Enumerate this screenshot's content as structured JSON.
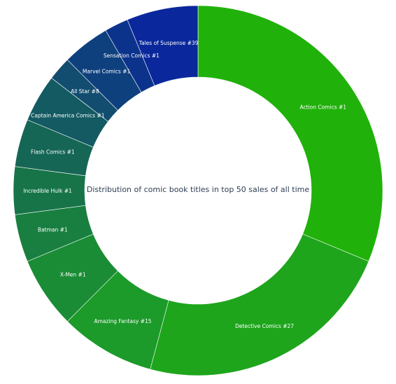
{
  "chart_data": {
    "type": "pie",
    "title": "Distribution of comic book titles in top 50 sales of all time",
    "categories": [
      "Action Comics #1",
      "Detective Comics #27",
      "Amazing Fantasy #15",
      "X-Men #1",
      "Batman #1",
      "Incredible Hulk #1",
      "Flash Comics #1",
      "Captain America Comics #1",
      "All Star #8",
      "Marvel Comics #1",
      "Sensation Comics #1",
      "Tales of Suspense #39"
    ],
    "values": [
      15,
      11,
      4,
      3,
      2,
      2,
      2,
      2,
      1,
      2,
      1,
      3
    ],
    "colors": [
      "#21b10b",
      "#1ea51c",
      "#1c9a2a",
      "#1a8c35",
      "#197f40",
      "#177449",
      "#166655",
      "#135a62",
      "#124d70",
      "#0f407e",
      "#0c338c",
      "#0a289b"
    ],
    "legend": "none",
    "donut": true
  }
}
